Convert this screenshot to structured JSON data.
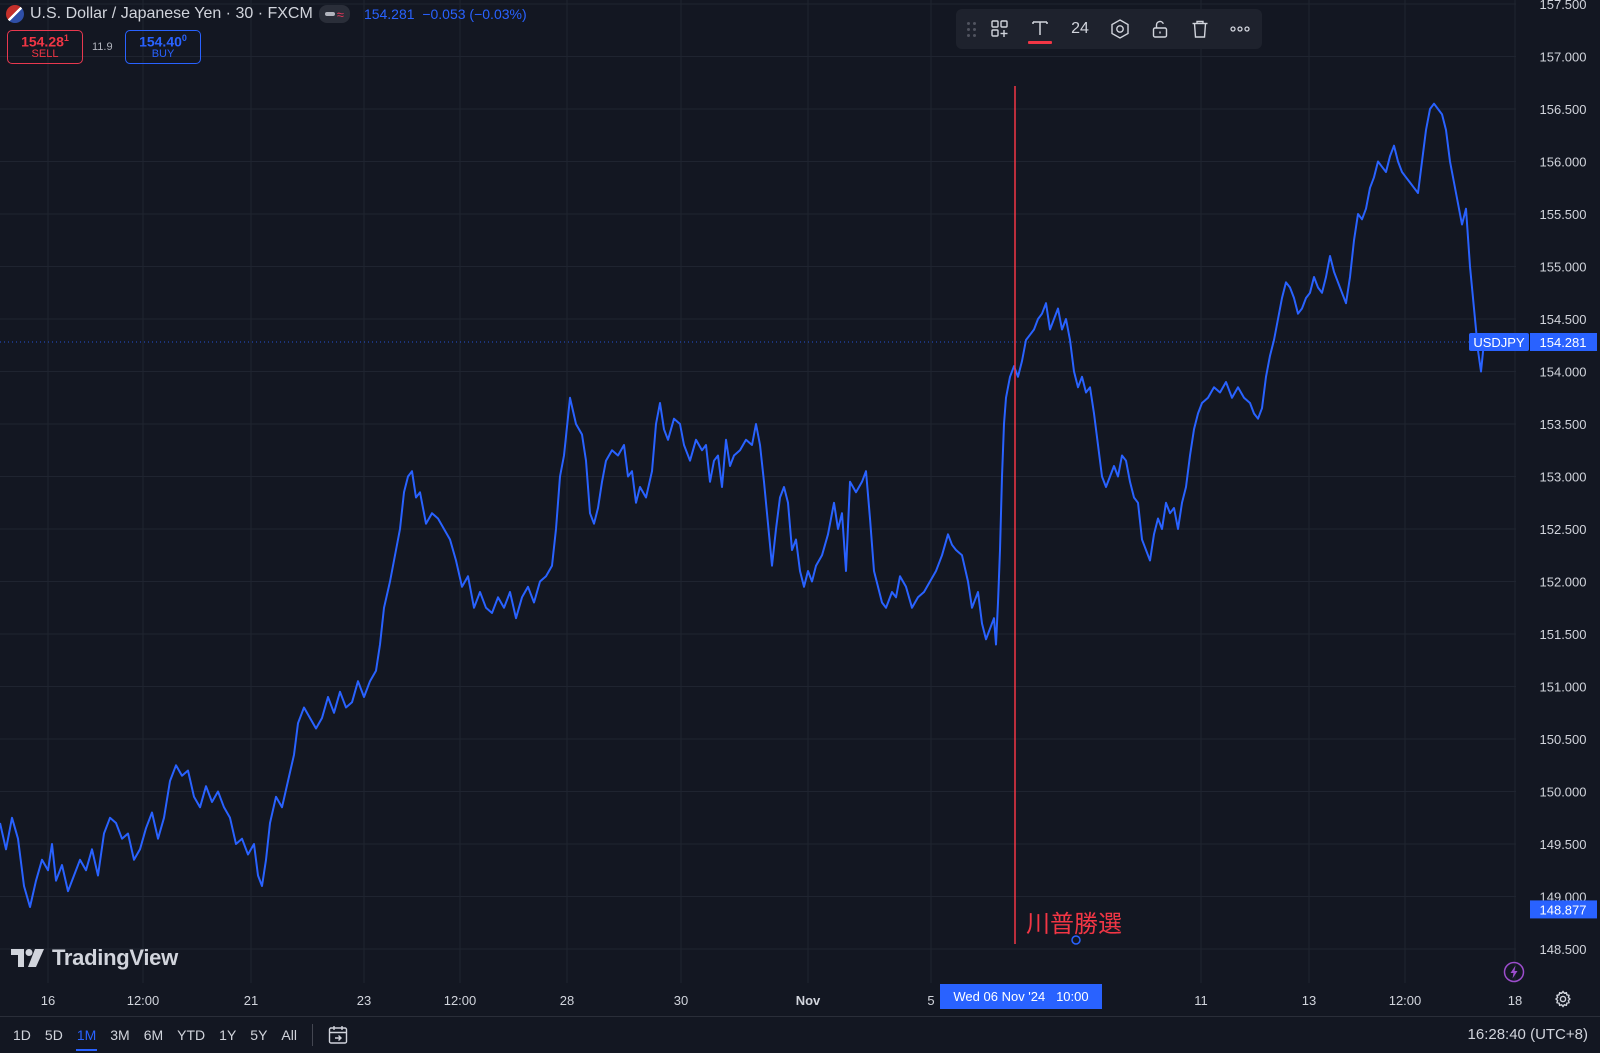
{
  "header": {
    "symbol_title": "U.S. Dollar / Japanese Yen · 30 · FXCM",
    "last_price": "154.281",
    "change": "−0.053 (−0.03%)",
    "sell_price_main": "154.28",
    "sell_price_sup": "1",
    "sell_label": "SELL",
    "spread": "11.9",
    "buy_price_main": "154.40",
    "buy_price_sup": "0",
    "buy_label": "BUY"
  },
  "toolbar": {
    "font_size": "24",
    "icons": [
      "drag-grip-icon",
      "template-icon",
      "text-color-icon",
      "settings-icon",
      "unlock-icon",
      "trash-icon",
      "more-icon"
    ]
  },
  "branding": {
    "logo_text": "TradingView"
  },
  "time_ranges": [
    "1D",
    "5D",
    "1M",
    "3M",
    "6M",
    "YTD",
    "1Y",
    "5Y",
    "All"
  ],
  "active_range": "1M",
  "clock": "16:28:40 (UTC+8)",
  "colors": {
    "background": "#131722",
    "line": "#2962ff",
    "event_line": "#f23645",
    "grid": "#1f2430",
    "text": "#d1d4dc"
  },
  "chart_data": {
    "type": "line",
    "series": [
      {
        "name": "USDJPY",
        "last": 154.281
      }
    ],
    "y_ticks": [
      "157.500",
      "157.000",
      "156.500",
      "156.000",
      "155.500",
      "155.000",
      "154.500",
      "154.000",
      "153.500",
      "153.000",
      "152.500",
      "152.000",
      "151.500",
      "151.000",
      "150.500",
      "150.000",
      "149.500",
      "149.000",
      "148.500"
    ],
    "ylim": [
      148.5,
      157.5
    ],
    "x_ticks": [
      "16",
      "12:00",
      "21",
      "23",
      "12:00",
      "28",
      "30",
      "Nov",
      "5",
      "11",
      "13",
      "12:00",
      "18"
    ],
    "price_labels": [
      {
        "label": "USDJPY",
        "value": "154.281"
      },
      {
        "value": "148.877"
      }
    ],
    "crosshair_time_label": "Wed 06 Nov '24   10:00",
    "annotation": {
      "text": "川普勝選"
    },
    "points": [
      [
        0,
        149.7
      ],
      [
        6,
        149.45
      ],
      [
        12,
        149.75
      ],
      [
        18,
        149.55
      ],
      [
        24,
        149.1
      ],
      [
        30,
        148.9
      ],
      [
        36,
        149.15
      ],
      [
        42,
        149.35
      ],
      [
        48,
        149.25
      ],
      [
        52,
        149.5
      ],
      [
        56,
        149.15
      ],
      [
        62,
        149.3
      ],
      [
        68,
        149.05
      ],
      [
        74,
        149.2
      ],
      [
        80,
        149.35
      ],
      [
        86,
        149.25
      ],
      [
        92,
        149.45
      ],
      [
        98,
        149.2
      ],
      [
        104,
        149.6
      ],
      [
        110,
        149.75
      ],
      [
        116,
        149.7
      ],
      [
        122,
        149.55
      ],
      [
        128,
        149.6
      ],
      [
        134,
        149.35
      ],
      [
        140,
        149.45
      ],
      [
        146,
        149.65
      ],
      [
        152,
        149.8
      ],
      [
        158,
        149.55
      ],
      [
        164,
        149.75
      ],
      [
        170,
        150.1
      ],
      [
        176,
        150.25
      ],
      [
        182,
        150.15
      ],
      [
        188,
        150.2
      ],
      [
        194,
        149.95
      ],
      [
        200,
        149.85
      ],
      [
        206,
        150.05
      ],
      [
        212,
        149.9
      ],
      [
        218,
        150.0
      ],
      [
        224,
        149.85
      ],
      [
        230,
        149.75
      ],
      [
        236,
        149.5
      ],
      [
        242,
        149.55
      ],
      [
        248,
        149.4
      ],
      [
        254,
        149.5
      ],
      [
        258,
        149.2
      ],
      [
        262,
        149.1
      ],
      [
        266,
        149.35
      ],
      [
        270,
        149.7
      ],
      [
        276,
        149.95
      ],
      [
        282,
        149.85
      ],
      [
        288,
        150.1
      ],
      [
        294,
        150.35
      ],
      [
        298,
        150.65
      ],
      [
        304,
        150.8
      ],
      [
        310,
        150.7
      ],
      [
        316,
        150.6
      ],
      [
        322,
        150.7
      ],
      [
        328,
        150.9
      ],
      [
        334,
        150.75
      ],
      [
        340,
        150.95
      ],
      [
        346,
        150.8
      ],
      [
        352,
        150.85
      ],
      [
        358,
        151.05
      ],
      [
        364,
        150.9
      ],
      [
        370,
        151.05
      ],
      [
        376,
        151.15
      ],
      [
        380,
        151.4
      ],
      [
        384,
        151.75
      ],
      [
        390,
        152.0
      ],
      [
        396,
        152.3
      ],
      [
        400,
        152.5
      ],
      [
        404,
        152.85
      ],
      [
        408,
        153.0
      ],
      [
        412,
        153.05
      ],
      [
        416,
        152.8
      ],
      [
        420,
        152.85
      ],
      [
        426,
        152.55
      ],
      [
        432,
        152.65
      ],
      [
        438,
        152.6
      ],
      [
        444,
        152.5
      ],
      [
        450,
        152.4
      ],
      [
        456,
        152.2
      ],
      [
        462,
        151.95
      ],
      [
        468,
        152.05
      ],
      [
        474,
        151.75
      ],
      [
        480,
        151.9
      ],
      [
        486,
        151.75
      ],
      [
        492,
        151.7
      ],
      [
        498,
        151.85
      ],
      [
        504,
        151.75
      ],
      [
        510,
        151.9
      ],
      [
        516,
        151.65
      ],
      [
        522,
        151.85
      ],
      [
        528,
        151.95
      ],
      [
        534,
        151.8
      ],
      [
        540,
        152.0
      ],
      [
        546,
        152.05
      ],
      [
        552,
        152.15
      ],
      [
        556,
        152.5
      ],
      [
        560,
        153.0
      ],
      [
        564,
        153.2
      ],
      [
        570,
        153.75
      ],
      [
        576,
        153.5
      ],
      [
        582,
        153.4
      ],
      [
        586,
        153.15
      ],
      [
        590,
        152.65
      ],
      [
        594,
        152.55
      ],
      [
        598,
        152.7
      ],
      [
        602,
        152.95
      ],
      [
        606,
        153.15
      ],
      [
        612,
        153.25
      ],
      [
        618,
        153.2
      ],
      [
        624,
        153.3
      ],
      [
        628,
        153.0
      ],
      [
        632,
        153.05
      ],
      [
        636,
        152.75
      ],
      [
        640,
        152.9
      ],
      [
        646,
        152.8
      ],
      [
        652,
        153.05
      ],
      [
        656,
        153.5
      ],
      [
        660,
        153.7
      ],
      [
        664,
        153.45
      ],
      [
        668,
        153.35
      ],
      [
        674,
        153.55
      ],
      [
        680,
        153.5
      ],
      [
        684,
        153.3
      ],
      [
        690,
        153.15
      ],
      [
        696,
        153.35
      ],
      [
        702,
        153.25
      ],
      [
        706,
        153.3
      ],
      [
        710,
        152.95
      ],
      [
        714,
        153.15
      ],
      [
        718,
        153.2
      ],
      [
        722,
        152.9
      ],
      [
        726,
        153.35
      ],
      [
        730,
        153.1
      ],
      [
        734,
        153.2
      ],
      [
        740,
        153.25
      ],
      [
        746,
        153.35
      ],
      [
        752,
        153.3
      ],
      [
        756,
        153.5
      ],
      [
        760,
        153.3
      ],
      [
        764,
        152.95
      ],
      [
        768,
        152.55
      ],
      [
        772,
        152.15
      ],
      [
        776,
        152.5
      ],
      [
        780,
        152.8
      ],
      [
        784,
        152.9
      ],
      [
        788,
        152.75
      ],
      [
        792,
        152.3
      ],
      [
        796,
        152.4
      ],
      [
        800,
        152.1
      ],
      [
        804,
        151.95
      ],
      [
        808,
        152.1
      ],
      [
        812,
        152.0
      ],
      [
        816,
        152.15
      ],
      [
        822,
        152.25
      ],
      [
        828,
        152.45
      ],
      [
        834,
        152.75
      ],
      [
        838,
        152.5
      ],
      [
        842,
        152.65
      ],
      [
        846,
        152.1
      ],
      [
        850,
        152.95
      ],
      [
        856,
        152.85
      ],
      [
        862,
        152.95
      ],
      [
        866,
        153.05
      ],
      [
        870,
        152.6
      ],
      [
        874,
        152.1
      ],
      [
        878,
        151.95
      ],
      [
        882,
        151.8
      ],
      [
        886,
        151.75
      ],
      [
        892,
        151.9
      ],
      [
        896,
        151.85
      ],
      [
        900,
        152.05
      ],
      [
        906,
        151.95
      ],
      [
        912,
        151.75
      ],
      [
        918,
        151.85
      ],
      [
        924,
        151.9
      ],
      [
        930,
        152.0
      ],
      [
        936,
        152.1
      ],
      [
        942,
        152.25
      ],
      [
        948,
        152.45
      ],
      [
        952,
        152.35
      ],
      [
        956,
        152.3
      ],
      [
        962,
        152.25
      ],
      [
        968,
        152.0
      ],
      [
        972,
        151.75
      ],
      [
        978,
        151.9
      ],
      [
        982,
        151.6
      ],
      [
        986,
        151.45
      ],
      [
        990,
        151.55
      ],
      [
        994,
        151.65
      ],
      [
        996,
        151.4
      ],
      [
        998,
        151.8
      ],
      [
        1000,
        152.3
      ],
      [
        1002,
        153.0
      ],
      [
        1004,
        153.5
      ],
      [
        1006,
        153.75
      ],
      [
        1010,
        153.95
      ],
      [
        1014,
        154.05
      ],
      [
        1018,
        153.95
      ],
      [
        1022,
        154.1
      ],
      [
        1026,
        154.3
      ],
      [
        1030,
        154.35
      ],
      [
        1034,
        154.4
      ],
      [
        1038,
        154.5
      ],
      [
        1042,
        154.55
      ],
      [
        1046,
        154.65
      ],
      [
        1050,
        154.4
      ],
      [
        1054,
        154.5
      ],
      [
        1058,
        154.6
      ],
      [
        1062,
        154.4
      ],
      [
        1066,
        154.5
      ],
      [
        1070,
        154.3
      ],
      [
        1074,
        154.0
      ],
      [
        1078,
        153.85
      ],
      [
        1082,
        153.95
      ],
      [
        1086,
        153.8
      ],
      [
        1090,
        153.85
      ],
      [
        1094,
        153.6
      ],
      [
        1098,
        153.3
      ],
      [
        1102,
        153.0
      ],
      [
        1106,
        152.9
      ],
      [
        1110,
        153.0
      ],
      [
        1114,
        153.1
      ],
      [
        1118,
        153.0
      ],
      [
        1122,
        153.2
      ],
      [
        1126,
        153.15
      ],
      [
        1130,
        152.95
      ],
      [
        1134,
        152.8
      ],
      [
        1138,
        152.75
      ],
      [
        1142,
        152.4
      ],
      [
        1146,
        152.3
      ],
      [
        1150,
        152.2
      ],
      [
        1154,
        152.45
      ],
      [
        1158,
        152.6
      ],
      [
        1162,
        152.5
      ],
      [
        1166,
        152.75
      ],
      [
        1170,
        152.65
      ],
      [
        1174,
        152.7
      ],
      [
        1178,
        152.5
      ],
      [
        1182,
        152.75
      ],
      [
        1186,
        152.9
      ],
      [
        1190,
        153.2
      ],
      [
        1194,
        153.45
      ],
      [
        1198,
        153.6
      ],
      [
        1202,
        153.7
      ],
      [
        1208,
        153.75
      ],
      [
        1214,
        153.85
      ],
      [
        1220,
        153.8
      ],
      [
        1226,
        153.9
      ],
      [
        1232,
        153.75
      ],
      [
        1238,
        153.85
      ],
      [
        1244,
        153.75
      ],
      [
        1250,
        153.7
      ],
      [
        1254,
        153.6
      ],
      [
        1258,
        153.55
      ],
      [
        1262,
        153.65
      ],
      [
        1266,
        153.95
      ],
      [
        1270,
        154.15
      ],
      [
        1274,
        154.3
      ],
      [
        1278,
        154.5
      ],
      [
        1282,
        154.7
      ],
      [
        1286,
        154.85
      ],
      [
        1290,
        154.8
      ],
      [
        1294,
        154.7
      ],
      [
        1298,
        154.55
      ],
      [
        1302,
        154.6
      ],
      [
        1306,
        154.7
      ],
      [
        1310,
        154.75
      ],
      [
        1314,
        154.9
      ],
      [
        1318,
        154.8
      ],
      [
        1322,
        154.75
      ],
      [
        1326,
        154.9
      ],
      [
        1330,
        155.1
      ],
      [
        1334,
        154.95
      ],
      [
        1338,
        154.85
      ],
      [
        1342,
        154.75
      ],
      [
        1346,
        154.65
      ],
      [
        1350,
        154.9
      ],
      [
        1354,
        155.25
      ],
      [
        1358,
        155.5
      ],
      [
        1362,
        155.45
      ],
      [
        1366,
        155.55
      ],
      [
        1370,
        155.75
      ],
      [
        1374,
        155.85
      ],
      [
        1378,
        156.0
      ],
      [
        1382,
        155.95
      ],
      [
        1386,
        155.9
      ],
      [
        1390,
        156.05
      ],
      [
        1394,
        156.15
      ],
      [
        1398,
        156.0
      ],
      [
        1402,
        155.9
      ],
      [
        1406,
        155.85
      ],
      [
        1410,
        155.8
      ],
      [
        1414,
        155.75
      ],
      [
        1418,
        155.7
      ],
      [
        1422,
        156.0
      ],
      [
        1426,
        156.3
      ],
      [
        1430,
        156.5
      ],
      [
        1434,
        156.55
      ],
      [
        1438,
        156.5
      ],
      [
        1442,
        156.45
      ],
      [
        1446,
        156.3
      ],
      [
        1450,
        156.0
      ],
      [
        1454,
        155.8
      ],
      [
        1458,
        155.6
      ],
      [
        1462,
        155.4
      ],
      [
        1466,
        155.55
      ],
      [
        1470,
        155.0
      ],
      [
        1474,
        154.6
      ],
      [
        1478,
        154.2
      ],
      [
        1481,
        154.0
      ],
      [
        1484,
        154.281
      ]
    ]
  }
}
